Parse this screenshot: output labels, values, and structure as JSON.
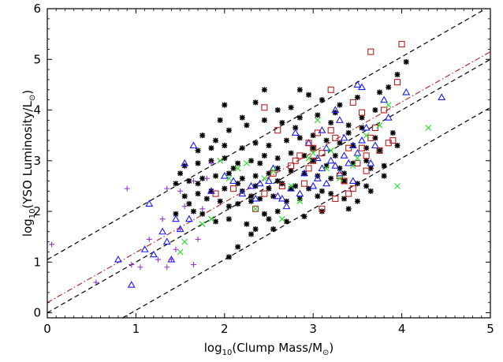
{
  "chart_data": {
    "type": "scatter",
    "title": "",
    "xlabel": {
      "pre": "log",
      "sub": "10",
      "mid": "(Clump Mass/M",
      "sun": "⊙",
      "post": ")"
    },
    "ylabel": {
      "pre": "log",
      "sub": "10",
      "mid": "(YSO Luminosity/L",
      "sun": "⊙",
      "post": ")"
    },
    "xlim": [
      0,
      5
    ],
    "ylim": [
      -0.1,
      6
    ],
    "xticks": [
      "0",
      "1",
      "2",
      "3",
      "4",
      "5"
    ],
    "yticks": [
      "0",
      "1",
      "2",
      "3",
      "4",
      "5",
      "6"
    ],
    "grid": false,
    "legend": "none",
    "colors": {
      "black": "#000000",
      "blue": "#1a1aff",
      "red": "#b22222",
      "green": "#22dd22",
      "purple": "#9933cc",
      "fit": "#b03030"
    },
    "lines": [
      {
        "style": "dashed",
        "color": "#000000",
        "intercept": 1.05,
        "slope": 1.0
      },
      {
        "style": "dashed",
        "color": "#000000",
        "intercept": 0.0,
        "slope": 1.0
      },
      {
        "style": "dashed",
        "color": "#000000",
        "intercept": -0.95,
        "slope": 1.0
      },
      {
        "style": "dash-dot",
        "color": "#b03030",
        "intercept": 0.2,
        "slope": 0.99
      }
    ],
    "series": [
      {
        "marker": "asterisk",
        "color": "#000000",
        "points": [
          [
            2.05,
            1.1
          ],
          [
            2.15,
            1.3
          ],
          [
            2.3,
            1.55
          ],
          [
            2.35,
            1.65
          ],
          [
            2.25,
            1.75
          ],
          [
            2.05,
            1.85
          ],
          [
            1.9,
            1.8
          ],
          [
            2.5,
            1.85
          ],
          [
            2.6,
            2.0
          ],
          [
            2.45,
            1.95
          ],
          [
            1.65,
            2.0
          ],
          [
            1.75,
            1.95
          ],
          [
            1.95,
            2.2
          ],
          [
            2.05,
            2.1
          ],
          [
            2.15,
            2.15
          ],
          [
            2.3,
            2.2
          ],
          [
            2.4,
            2.25
          ],
          [
            2.55,
            2.3
          ],
          [
            2.7,
            2.2
          ],
          [
            2.85,
            2.25
          ],
          [
            1.55,
            2.3
          ],
          [
            1.7,
            2.35
          ],
          [
            1.85,
            2.4
          ],
          [
            2.0,
            2.45
          ],
          [
            2.2,
            2.4
          ],
          [
            2.35,
            2.5
          ],
          [
            2.5,
            2.45
          ],
          [
            2.65,
            2.55
          ],
          [
            2.8,
            2.5
          ],
          [
            2.95,
            2.45
          ],
          [
            3.1,
            2.4
          ],
          [
            3.2,
            2.35
          ],
          [
            3.35,
            2.25
          ],
          [
            3.5,
            2.2
          ],
          [
            1.45,
            2.55
          ],
          [
            1.6,
            2.6
          ],
          [
            1.75,
            2.65
          ],
          [
            1.9,
            2.7
          ],
          [
            2.05,
            2.75
          ],
          [
            2.2,
            2.65
          ],
          [
            2.35,
            2.7
          ],
          [
            2.5,
            2.75
          ],
          [
            2.6,
            2.85
          ],
          [
            2.75,
            2.8
          ],
          [
            2.9,
            2.75
          ],
          [
            3.05,
            2.7
          ],
          [
            3.2,
            2.65
          ],
          [
            3.35,
            2.6
          ],
          [
            3.5,
            2.55
          ],
          [
            3.6,
            2.5
          ],
          [
            1.55,
            2.9
          ],
          [
            1.7,
            2.95
          ],
          [
            1.85,
            3.0
          ],
          [
            2.0,
            3.05
          ],
          [
            2.15,
            2.95
          ],
          [
            2.3,
            3.0
          ],
          [
            2.45,
            3.1
          ],
          [
            2.6,
            3.05
          ],
          [
            2.75,
            3.15
          ],
          [
            2.9,
            3.1
          ],
          [
            3.0,
            3.0
          ],
          [
            3.15,
            2.9
          ],
          [
            3.3,
            2.85
          ],
          [
            3.45,
            2.95
          ],
          [
            3.65,
            2.85
          ],
          [
            3.8,
            2.9
          ],
          [
            1.7,
            3.2
          ],
          [
            1.85,
            3.25
          ],
          [
            2.0,
            3.3
          ],
          [
            2.2,
            3.25
          ],
          [
            2.35,
            3.35
          ],
          [
            2.5,
            3.3
          ],
          [
            2.7,
            3.4
          ],
          [
            2.85,
            3.45
          ],
          [
            3.0,
            3.5
          ],
          [
            3.15,
            3.4
          ],
          [
            3.3,
            3.35
          ],
          [
            3.45,
            3.3
          ],
          [
            3.6,
            3.25
          ],
          [
            1.75,
            3.5
          ],
          [
            2.05,
            3.6
          ],
          [
            2.25,
            3.7
          ],
          [
            2.45,
            3.8
          ],
          [
            2.65,
            3.75
          ],
          [
            2.85,
            3.85
          ],
          [
            3.05,
            3.9
          ],
          [
            3.25,
            3.95
          ],
          [
            3.4,
            3.7
          ],
          [
            3.55,
            3.65
          ],
          [
            2.0,
            4.1
          ],
          [
            2.35,
            4.15
          ],
          [
            2.75,
            4.05
          ],
          [
            3.1,
            4.2
          ],
          [
            3.3,
            4.1
          ],
          [
            3.5,
            4.25
          ],
          [
            3.7,
            4.0
          ],
          [
            3.75,
            4.35
          ],
          [
            3.85,
            4.45
          ],
          [
            3.95,
            4.7
          ],
          [
            4.05,
            4.95
          ],
          [
            3.9,
            3.55
          ],
          [
            3.75,
            3.2
          ],
          [
            3.95,
            3.3
          ],
          [
            3.6,
            3.0
          ],
          [
            3.8,
            2.7
          ],
          [
            3.65,
            2.4
          ],
          [
            3.4,
            2.05
          ],
          [
            3.1,
            2.0
          ],
          [
            2.9,
            1.9
          ],
          [
            2.7,
            1.8
          ],
          [
            2.55,
            1.65
          ],
          [
            1.45,
            1.95
          ],
          [
            1.6,
            2.15
          ],
          [
            1.5,
            2.75
          ],
          [
            1.7,
            2.55
          ],
          [
            1.8,
            2.25
          ],
          [
            3.25,
            3.1
          ],
          [
            3.4,
            3.55
          ],
          [
            2.4,
            2.95
          ],
          [
            2.6,
            2.6
          ],
          [
            3.0,
            3.25
          ],
          [
            2.2,
            3.85
          ],
          [
            1.9,
            3.4
          ],
          [
            2.15,
            2.55
          ],
          [
            2.8,
            3.65
          ],
          [
            2.6,
            4.0
          ],
          [
            2.95,
            4.3
          ],
          [
            3.2,
            3.75
          ],
          [
            3.55,
            3.85
          ],
          [
            1.95,
            3.8
          ],
          [
            2.45,
            4.4
          ],
          [
            2.85,
            4.4
          ],
          [
            3.7,
            3.45
          ],
          [
            3.35,
            2.75
          ],
          [
            3.05,
            2.3
          ],
          [
            2.75,
            2.45
          ],
          [
            2.1,
            2.85
          ],
          [
            2.3,
            2.3
          ]
        ]
      },
      {
        "marker": "triangle",
        "color": "#1a1aff",
        "points": [
          [
            0.8,
            1.05
          ],
          [
            0.95,
            0.55
          ],
          [
            1.1,
            1.25
          ],
          [
            1.2,
            1.15
          ],
          [
            1.35,
            1.4
          ],
          [
            1.45,
            1.85
          ],
          [
            1.15,
            2.15
          ],
          [
            1.3,
            1.6
          ],
          [
            1.5,
            1.65
          ],
          [
            1.6,
            1.85
          ],
          [
            1.4,
            1.05
          ],
          [
            1.55,
            2.95
          ],
          [
            1.85,
            2.4
          ],
          [
            1.65,
            3.3
          ],
          [
            2.0,
            2.7
          ],
          [
            2.2,
            2.35
          ],
          [
            2.35,
            2.25
          ],
          [
            2.5,
            2.6
          ],
          [
            2.6,
            2.3
          ],
          [
            2.7,
            2.1
          ],
          [
            2.75,
            2.45
          ],
          [
            2.85,
            2.35
          ],
          [
            2.9,
            2.75
          ],
          [
            3.0,
            2.5
          ],
          [
            3.05,
            2.65
          ],
          [
            3.1,
            2.85
          ],
          [
            3.15,
            2.55
          ],
          [
            3.2,
            3.0
          ],
          [
            3.25,
            2.9
          ],
          [
            3.3,
            2.75
          ],
          [
            3.35,
            3.1
          ],
          [
            3.4,
            2.95
          ],
          [
            3.45,
            3.3
          ],
          [
            3.5,
            3.15
          ],
          [
            3.55,
            3.4
          ],
          [
            3.6,
            3.65
          ],
          [
            3.5,
            4.5
          ],
          [
            3.55,
            4.45
          ],
          [
            3.25,
            4.0
          ],
          [
            3.85,
            3.85
          ],
          [
            4.05,
            4.35
          ],
          [
            4.45,
            4.25
          ],
          [
            3.1,
            3.6
          ],
          [
            3.3,
            3.8
          ],
          [
            2.95,
            3.35
          ],
          [
            2.8,
            3.55
          ],
          [
            3.65,
            2.95
          ],
          [
            2.55,
            2.85
          ],
          [
            2.4,
            2.55
          ],
          [
            2.65,
            2.25
          ],
          [
            2.3,
            2.5
          ],
          [
            2.1,
            2.6
          ],
          [
            3.45,
            2.6
          ],
          [
            3.7,
            3.3
          ],
          [
            3.8,
            4.2
          ],
          [
            3.35,
            3.45
          ],
          [
            3.15,
            3.25
          ],
          [
            3.05,
            3.05
          ]
        ]
      },
      {
        "marker": "square",
        "color": "#b22222",
        "points": [
          [
            1.9,
            2.35
          ],
          [
            2.1,
            2.45
          ],
          [
            2.35,
            2.05
          ],
          [
            2.45,
            2.35
          ],
          [
            2.55,
            2.75
          ],
          [
            2.65,
            2.5
          ],
          [
            2.75,
            2.9
          ],
          [
            2.85,
            3.1
          ],
          [
            2.95,
            2.85
          ],
          [
            3.0,
            3.0
          ],
          [
            3.05,
            3.55
          ],
          [
            3.1,
            3.15
          ],
          [
            3.2,
            3.6
          ],
          [
            3.25,
            3.45
          ],
          [
            3.3,
            2.7
          ],
          [
            3.35,
            2.6
          ],
          [
            3.4,
            3.25
          ],
          [
            3.5,
            2.95
          ],
          [
            3.55,
            3.25
          ],
          [
            3.6,
            3.1
          ],
          [
            3.65,
            3.45
          ],
          [
            3.7,
            3.65
          ],
          [
            3.75,
            3.2
          ],
          [
            3.85,
            3.35
          ],
          [
            3.9,
            3.4
          ],
          [
            3.95,
            4.55
          ],
          [
            4.0,
            5.3
          ],
          [
            3.65,
            5.15
          ],
          [
            3.8,
            4.0
          ],
          [
            3.2,
            4.4
          ],
          [
            3.45,
            4.15
          ],
          [
            3.55,
            3.95
          ],
          [
            2.45,
            4.05
          ],
          [
            3.0,
            3.25
          ],
          [
            2.6,
            3.6
          ],
          [
            2.9,
            2.55
          ],
          [
            3.1,
            2.05
          ],
          [
            3.25,
            2.25
          ],
          [
            3.4,
            2.35
          ],
          [
            3.45,
            2.45
          ],
          [
            3.6,
            2.8
          ],
          [
            2.95,
            3.35
          ],
          [
            2.8,
            3.0
          ]
        ]
      },
      {
        "marker": "x",
        "color": "#22dd22",
        "points": [
          [
            1.55,
            1.4
          ],
          [
            1.5,
            1.2
          ],
          [
            1.75,
            1.75
          ],
          [
            1.85,
            1.85
          ],
          [
            2.05,
            2.65
          ],
          [
            2.15,
            2.85
          ],
          [
            2.25,
            2.95
          ],
          [
            2.45,
            2.65
          ],
          [
            2.55,
            2.8
          ],
          [
            2.65,
            1.85
          ],
          [
            2.75,
            2.5
          ],
          [
            2.85,
            2.2
          ],
          [
            2.95,
            3.05
          ],
          [
            3.0,
            3.15
          ],
          [
            3.15,
            2.85
          ],
          [
            3.2,
            3.2
          ],
          [
            3.3,
            2.65
          ],
          [
            3.45,
            2.9
          ],
          [
            3.6,
            3.5
          ],
          [
            3.75,
            3.7
          ],
          [
            3.85,
            4.1
          ],
          [
            4.3,
            3.65
          ],
          [
            3.95,
            2.5
          ],
          [
            3.05,
            3.8
          ],
          [
            3.5,
            3.05
          ],
          [
            2.35,
            2.05
          ],
          [
            1.95,
            3.0
          ]
        ]
      },
      {
        "marker": "plus",
        "color": "#9933cc",
        "points": [
          [
            0.05,
            1.35
          ],
          [
            0.55,
            0.6
          ],
          [
            0.9,
            2.45
          ],
          [
            0.95,
            0.95
          ],
          [
            1.05,
            0.9
          ],
          [
            1.15,
            1.45
          ],
          [
            1.25,
            1.05
          ],
          [
            1.3,
            1.85
          ],
          [
            1.35,
            2.45
          ],
          [
            1.4,
            1.05
          ],
          [
            1.45,
            1.25
          ],
          [
            1.5,
            1.65
          ],
          [
            1.55,
            2.1
          ],
          [
            1.65,
            0.95
          ],
          [
            1.7,
            1.45
          ],
          [
            1.75,
            2.05
          ],
          [
            1.8,
            2.65
          ],
          [
            1.85,
            2.95
          ],
          [
            1.65,
            2.6
          ],
          [
            1.5,
            2.4
          ],
          [
            1.35,
            0.9
          ]
        ]
      }
    ]
  }
}
